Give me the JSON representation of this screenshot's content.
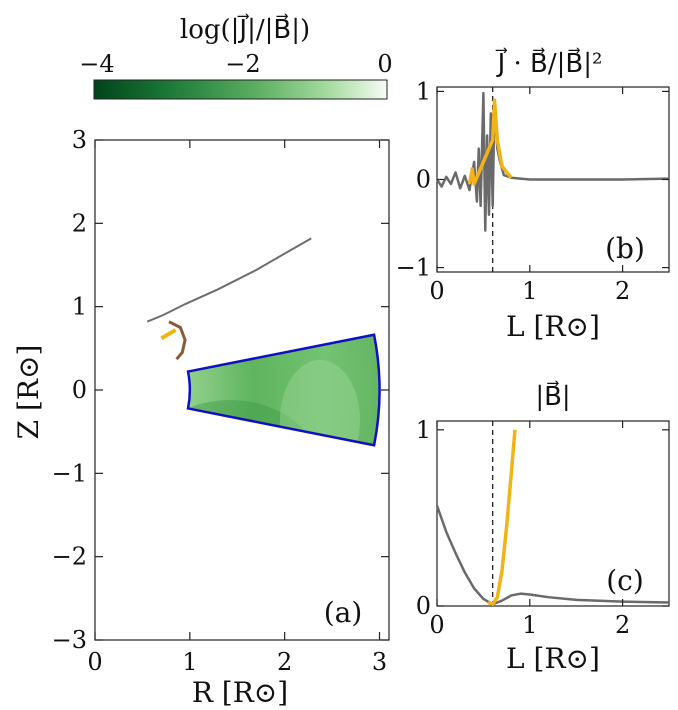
{
  "colorbar": {
    "title": "log(|J⃗|/|B⃗|)",
    "ticks": [
      "−4",
      "−2",
      "0"
    ],
    "range": [
      -4.6,
      0
    ],
    "colors": [
      "#00441b",
      "#1b7837",
      "#5aae61",
      "#a6dba0",
      "#f7fcf5"
    ]
  },
  "chart_data": [
    {
      "panel": "(a)",
      "type": "heatmap",
      "xlabel": "R [R⊙]",
      "ylabel": "Z [R⊙]",
      "xlim": [
        0,
        3.1
      ],
      "ylim": [
        -3,
        3
      ],
      "xticks": [
        "0",
        "1",
        "2",
        "3"
      ],
      "yticks": [
        "−3",
        "−2",
        "−1",
        "0",
        "1",
        "2",
        "3"
      ],
      "domain": {
        "r_inner": 1.0,
        "r_outer": 3.0,
        "theta_max_deg": 78.8
      },
      "field_line": [
        [
          0.55,
          0.82
        ],
        [
          0.72,
          0.9
        ],
        [
          0.95,
          1.03
        ],
        [
          1.3,
          1.21
        ],
        [
          1.7,
          1.44
        ],
        [
          2.05,
          1.67
        ],
        [
          2.28,
          1.82
        ]
      ],
      "loop": [
        [
          0.78,
          0.82
        ],
        [
          0.9,
          0.75
        ],
        [
          0.95,
          0.6
        ],
        [
          0.92,
          0.45
        ],
        [
          0.86,
          0.37
        ]
      ],
      "highlight": [
        [
          0.7,
          0.62
        ],
        [
          0.85,
          0.72
        ]
      ],
      "colors": {
        "boundary": "#1010c0",
        "line": "#6e6e6e",
        "loop": "#8a5a3a",
        "highlight": "#f2b318"
      }
    },
    {
      "panel": "(b)",
      "type": "line",
      "title": "J⃗ · B⃗/|B⃗|²",
      "xlabel": "L [R⊙]",
      "xlim": [
        0,
        2.5
      ],
      "ylim": [
        -1.05,
        1.05
      ],
      "xticks": [
        "0",
        "1",
        "2"
      ],
      "yticks": [
        "−1",
        "0",
        "1"
      ],
      "vline": 0.6,
      "series": [
        {
          "values": [
            [
              0,
              0.0
            ],
            [
              0.05,
              -0.08
            ],
            [
              0.1,
              0.03
            ],
            [
              0.15,
              -0.05
            ],
            [
              0.2,
              0.08
            ],
            [
              0.25,
              -0.1
            ],
            [
              0.3,
              0.04
            ],
            [
              0.35,
              -0.12
            ],
            [
              0.4,
              0.2
            ],
            [
              0.43,
              -0.25
            ],
            [
              0.45,
              0.35
            ],
            [
              0.47,
              -0.3
            ],
            [
              0.5,
              0.98
            ],
            [
              0.52,
              -0.58
            ],
            [
              0.54,
              0.5
            ],
            [
              0.56,
              -0.4
            ],
            [
              0.58,
              0.75
            ],
            [
              0.6,
              -0.3
            ],
            [
              0.62,
              0.88
            ],
            [
              0.65,
              0.35
            ],
            [
              0.68,
              0.2
            ],
            [
              0.72,
              0.05
            ],
            [
              0.8,
              0.02
            ],
            [
              1.0,
              0.0
            ],
            [
              1.5,
              0.0
            ],
            [
              2.0,
              0.0
            ],
            [
              2.5,
              0.01
            ]
          ]
        },
        {
          "values": [
            [
              0.35,
              -0.05
            ],
            [
              0.38,
              0.12
            ],
            [
              0.4,
              -0.05
            ],
            [
              0.6,
              0.45
            ],
            [
              0.62,
              0.9
            ],
            [
              0.65,
              0.45
            ],
            [
              0.7,
              0.15
            ],
            [
              0.8,
              0.02
            ]
          ]
        }
      ]
    },
    {
      "panel": "(c)",
      "type": "line",
      "title": "|B⃗|",
      "xlabel": "L [R⊙]",
      "xlim": [
        0,
        2.5
      ],
      "ylim": [
        0,
        1.05
      ],
      "xticks": [
        "0",
        "1",
        "2"
      ],
      "yticks": [
        "0",
        "1"
      ],
      "vline": 0.6,
      "series": [
        {
          "values": [
            [
              0,
              0.57
            ],
            [
              0.1,
              0.42
            ],
            [
              0.2,
              0.3
            ],
            [
              0.3,
              0.19
            ],
            [
              0.4,
              0.1
            ],
            [
              0.5,
              0.04
            ],
            [
              0.6,
              0.01
            ],
            [
              0.7,
              0.03
            ],
            [
              0.8,
              0.06
            ],
            [
              0.9,
              0.07
            ],
            [
              1.0,
              0.065
            ],
            [
              1.2,
              0.05
            ],
            [
              1.5,
              0.035
            ],
            [
              2.0,
              0.025
            ],
            [
              2.5,
              0.02
            ]
          ]
        },
        {
          "values": [
            [
              0.55,
              0.02
            ],
            [
              0.6,
              0.01
            ],
            [
              0.65,
              0.05
            ],
            [
              0.7,
              0.2
            ],
            [
              0.75,
              0.45
            ],
            [
              0.8,
              0.75
            ],
            [
              0.84,
              1.0
            ]
          ]
        }
      ]
    }
  ]
}
